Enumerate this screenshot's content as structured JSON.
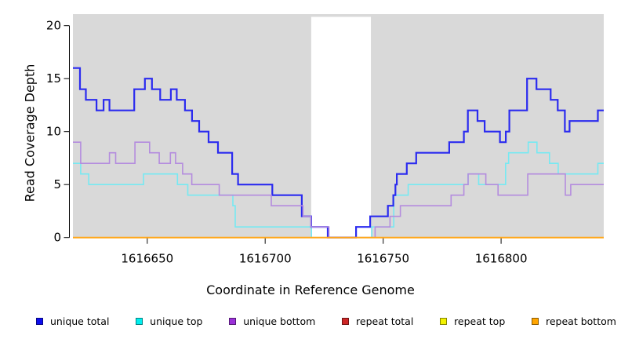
{
  "chart_data": {
    "type": "line",
    "subtype": "step-coverage-plot",
    "title": "",
    "xlabel": "Coordinate in Reference Genome",
    "ylabel": "Read Coverage Depth",
    "xlim": [
      1616618.5,
      1616843.5
    ],
    "ylim": [
      0,
      20
    ],
    "x_ticks": [
      1616650,
      1616700,
      1616750,
      1616800
    ],
    "x_tick_labels": [
      "1616650",
      "1616700",
      "1616750",
      "1616800"
    ],
    "y_ticks": [
      0,
      5,
      10,
      15,
      20
    ],
    "y_tick_labels": [
      "0",
      "5",
      "10",
      "15",
      "20"
    ],
    "grid": false,
    "legend_position": "bottom-horizontal",
    "plot_background": "#D9D9D9",
    "unshaded_band": {
      "from": 1616719.5,
      "to": 1616744.8,
      "color": "#FFFFFF"
    },
    "draw_order": [
      3,
      4,
      1,
      0,
      2,
      5
    ],
    "series": [
      {
        "name": "unique total",
        "legend_color": "#0D0DEE",
        "line_color": "#2B2BEF",
        "line_width": 2.2,
        "steps": [
          [
            1616618.5,
            16
          ],
          [
            1616621.5,
            14
          ],
          [
            1616624,
            13
          ],
          [
            1616628.5,
            12
          ],
          [
            1616631.5,
            13
          ],
          [
            1616634,
            12
          ],
          [
            1616644.5,
            14
          ],
          [
            1616649,
            15
          ],
          [
            1616652,
            14
          ],
          [
            1616655.5,
            13
          ],
          [
            1616660,
            14
          ],
          [
            1616662.5,
            13
          ],
          [
            1616666,
            12
          ],
          [
            1616669,
            11
          ],
          [
            1616672,
            10
          ],
          [
            1616676,
            9
          ],
          [
            1616680,
            8
          ],
          [
            1616686,
            6
          ],
          [
            1616688.5,
            5
          ],
          [
            1616703,
            4
          ],
          [
            1616715.5,
            2
          ],
          [
            1616719.5,
            1
          ],
          [
            1616726.5,
            0
          ],
          [
            1616738.5,
            1
          ],
          [
            1616744.5,
            2
          ],
          [
            1616752,
            3
          ],
          [
            1616754.3,
            4
          ],
          [
            1616755.2,
            5
          ],
          [
            1616755.8,
            6
          ],
          [
            1616760,
            7
          ],
          [
            1616764,
            8
          ],
          [
            1616778,
            9
          ],
          [
            1616784.2,
            10
          ],
          [
            1616785.9,
            12
          ],
          [
            1616790,
            11
          ],
          [
            1616793,
            10
          ],
          [
            1616799.5,
            9
          ],
          [
            1616802,
            10
          ],
          [
            1616803.5,
            12
          ],
          [
            1616811,
            15
          ],
          [
            1616815,
            14
          ],
          [
            1616821,
            13
          ],
          [
            1616824,
            12
          ],
          [
            1616827,
            10
          ],
          [
            1616829,
            11
          ],
          [
            1616841,
            12
          ]
        ]
      },
      {
        "name": "unique top",
        "legend_color": "#00EEEE",
        "line_color": "#76E9F2",
        "line_width": 1.6,
        "steps": [
          [
            1616618.5,
            7
          ],
          [
            1616621.8,
            6
          ],
          [
            1616625.2,
            5
          ],
          [
            1616648.4,
            6
          ],
          [
            1616662.8,
            5
          ],
          [
            1616667.2,
            4
          ],
          [
            1616686.3,
            3
          ],
          [
            1616687.3,
            1
          ],
          [
            1616719.6,
            0
          ],
          [
            1616745.2,
            1
          ],
          [
            1616754.5,
            4
          ],
          [
            1616760.6,
            5
          ],
          [
            1616786,
            6
          ],
          [
            1616790.5,
            5
          ],
          [
            1616801.9,
            7
          ],
          [
            1616803.2,
            8
          ],
          [
            1616811.5,
            9
          ],
          [
            1616815.2,
            8
          ],
          [
            1616820.5,
            7
          ],
          [
            1616824.2,
            6
          ],
          [
            1616841,
            7
          ]
        ]
      },
      {
        "name": "unique bottom",
        "legend_color": "#9B30D9",
        "line_color": "#B48CDE",
        "line_width": 1.6,
        "steps": [
          [
            1616618.5,
            9
          ],
          [
            1616621.8,
            7
          ],
          [
            1616634,
            8
          ],
          [
            1616636.6,
            7
          ],
          [
            1616644.8,
            9
          ],
          [
            1616651,
            8
          ],
          [
            1616655.1,
            7
          ],
          [
            1616659.8,
            8
          ],
          [
            1616662,
            7
          ],
          [
            1616665,
            6
          ],
          [
            1616668.9,
            5
          ],
          [
            1616680.5,
            4
          ],
          [
            1616702.6,
            3
          ],
          [
            1616716,
            2
          ],
          [
            1616719.4,
            1
          ],
          [
            1616727,
            0
          ],
          [
            1616746.6,
            1
          ],
          [
            1616752.9,
            2
          ],
          [
            1616757.3,
            3
          ],
          [
            1616778.8,
            4
          ],
          [
            1616784.2,
            5
          ],
          [
            1616786,
            6
          ],
          [
            1616793.5,
            5
          ],
          [
            1616798.7,
            4
          ],
          [
            1616811.3,
            6
          ],
          [
            1616827.2,
            4
          ],
          [
            1616829.5,
            5
          ]
        ]
      },
      {
        "name": "repeat total",
        "legend_color": "#CD2626",
        "line_color": "#CD2626",
        "line_width": 1.4,
        "steps": [
          [
            1616618.5,
            0
          ]
        ]
      },
      {
        "name": "repeat top",
        "legend_color": "#F2F200",
        "line_color": "#F2F200",
        "line_width": 1.4,
        "steps": [
          [
            1616618.5,
            0
          ]
        ]
      },
      {
        "name": "repeat bottom",
        "legend_color": "#FFA500",
        "line_color": "#FFA519",
        "line_width": 2,
        "steps": [
          [
            1616618.5,
            0
          ]
        ]
      }
    ]
  }
}
